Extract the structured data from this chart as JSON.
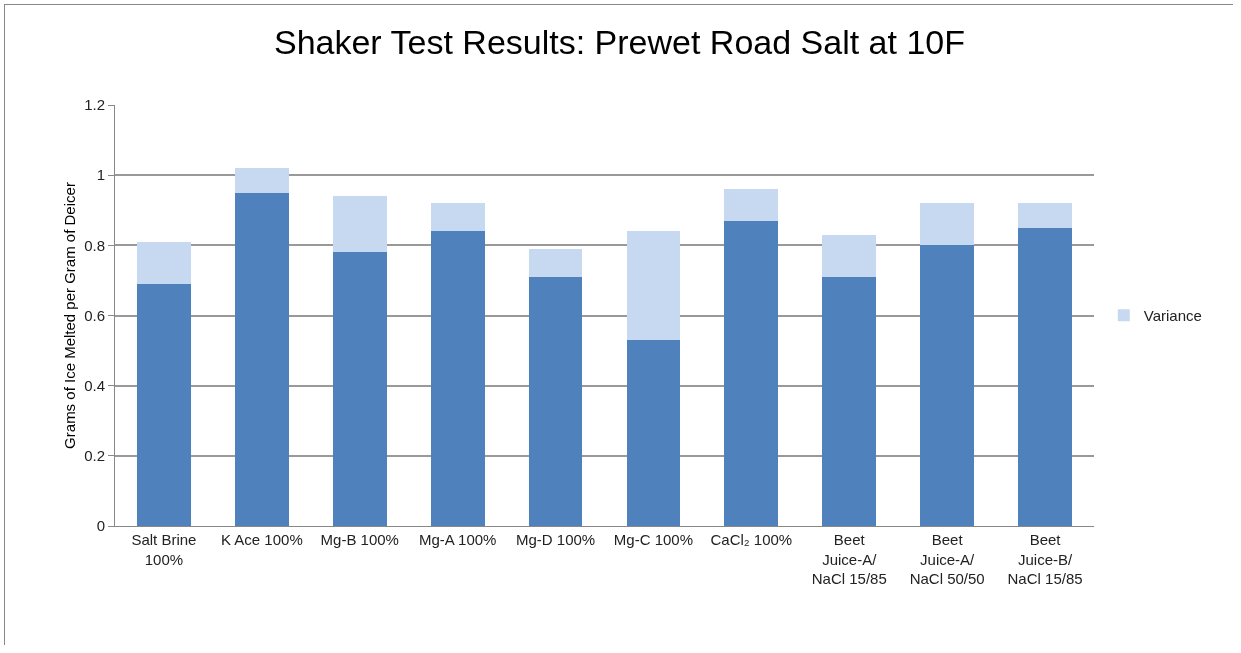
{
  "chart_data": {
    "type": "bar",
    "title": "Shaker Test Results: Prewet Road Salt at 10F",
    "ylabel": "Grams of Ice Melted per Gram of Deicer",
    "categories": [
      "Salt Brine 100%",
      "K Ace 100%",
      "Mg-B 100%",
      "Mg-A 100%",
      "Mg-D 100%",
      "Mg-C 100%",
      "CaCl₂ 100%",
      "Beet Juice-A/ NaCl 15/85",
      "Beet Juice-A/ NaCl 50/50",
      "Beet Juice-B/ NaCl 15/85"
    ],
    "stacked": true,
    "series": [
      {
        "color": "#4f81bd",
        "values": [
          0.69,
          0.95,
          0.78,
          0.84,
          0.71,
          0.53,
          0.87,
          0.71,
          0.8,
          0.85
        ]
      },
      {
        "name": "Variance",
        "color": "#c6d9f0",
        "values": [
          0.12,
          0.07,
          0.16,
          0.08,
          0.08,
          0.31,
          0.09,
          0.12,
          0.12,
          0.07
        ]
      }
    ],
    "ylim": [
      0,
      1.2
    ],
    "yticks": [
      0,
      0.2,
      0.4,
      0.6,
      0.8,
      1,
      1.2
    ],
    "grid": "y",
    "legend": "right"
  }
}
